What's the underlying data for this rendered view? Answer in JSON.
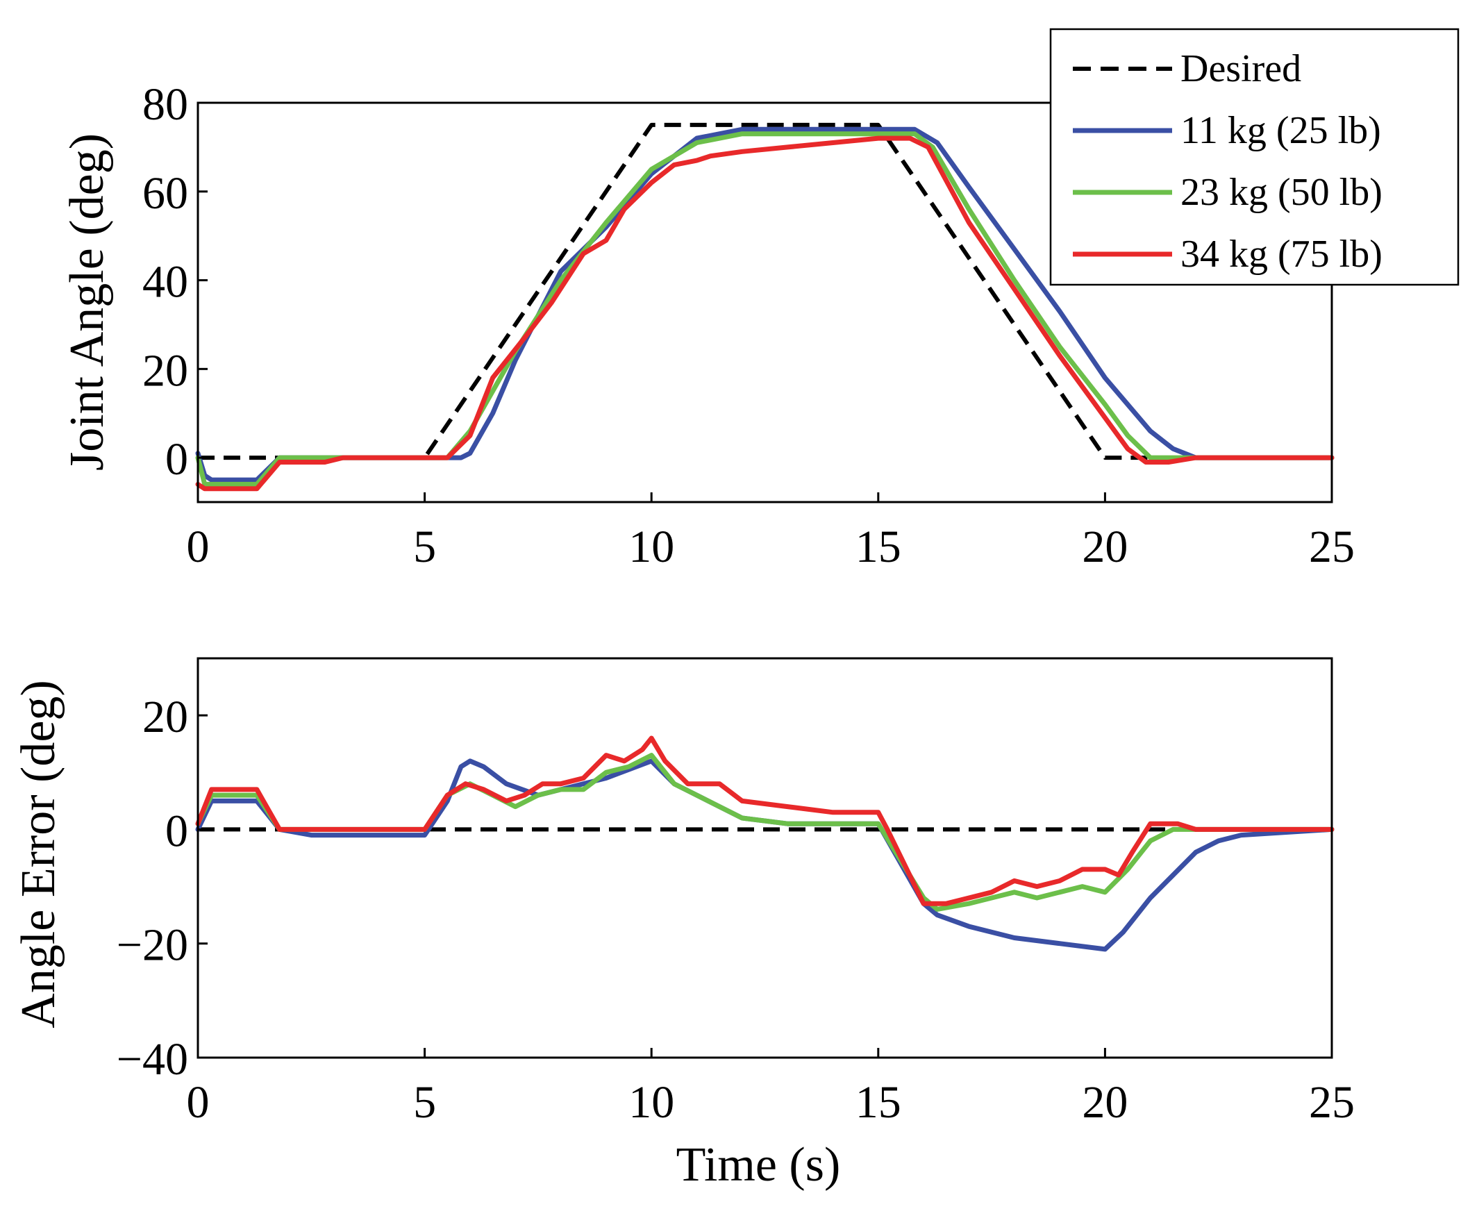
{
  "figure": {
    "xlabel": "Time (s)"
  },
  "colors": {
    "desired": "#000000",
    "s11": "#3a4fa4",
    "s23": "#6cbf4a",
    "s34": "#e8292a"
  },
  "chart_data": [
    {
      "type": "line",
      "name": "joint-angle",
      "xlabel": "",
      "ylabel": "Joint Angle (deg)",
      "xlim": [
        0,
        25
      ],
      "ylim": [
        -10,
        80
      ],
      "xticks": [
        "0",
        "5",
        "10",
        "15",
        "20",
        "25"
      ],
      "yticks": [
        "0",
        "20",
        "40",
        "60",
        "80"
      ],
      "ytick_values": [
        0,
        20,
        40,
        60,
        80
      ],
      "legend": {
        "position": "top-right",
        "entries": [
          "Desired",
          "11 kg (25 lb)",
          "23 kg (50 lb)",
          "34 kg (75 lb)"
        ]
      },
      "series": [
        {
          "name": "Desired",
          "key": "desired",
          "style": "dashed",
          "x": [
            0,
            5,
            10,
            15,
            20,
            25
          ],
          "y": [
            0,
            0,
            75,
            75,
            0,
            0
          ]
        },
        {
          "name": "11 kg (25 lb)",
          "key": "s11",
          "style": "solid",
          "x": [
            0,
            0.15,
            0.3,
            1,
            1.3,
            1.8,
            2.8,
            3.2,
            4,
            5,
            5.8,
            6,
            6.5,
            7,
            8,
            9,
            10,
            11,
            12,
            15.8,
            16.3,
            17,
            18,
            19,
            20,
            21,
            21.5,
            22,
            23,
            25
          ],
          "y": [
            1,
            -4,
            -5,
            -5,
            -5,
            0,
            0,
            0,
            0,
            0,
            0,
            1,
            10,
            22,
            42,
            52,
            64,
            72,
            74,
            74,
            71,
            61,
            47,
            33,
            18,
            6,
            2,
            0,
            0,
            0
          ]
        },
        {
          "name": "23 kg (50 lb)",
          "key": "s23",
          "style": "solid",
          "x": [
            0,
            0.15,
            0.3,
            1,
            1.3,
            1.8,
            2.8,
            3.2,
            4,
            5,
            5.5,
            6,
            7,
            8,
            9,
            10,
            11,
            12,
            15.8,
            16.2,
            17,
            18,
            19,
            20,
            20.5,
            21,
            22,
            25
          ],
          "y": [
            0,
            -6,
            -6,
            -6,
            -6,
            0,
            0,
            0,
            0,
            0,
            0,
            6,
            24,
            40,
            53,
            65,
            71,
            73,
            73,
            70,
            56,
            40,
            25,
            12,
            5,
            0,
            0,
            0
          ]
        },
        {
          "name": "34 kg (75 lb)",
          "key": "s34",
          "style": "solid",
          "x": [
            0,
            0.15,
            0.3,
            1,
            1.3,
            1.8,
            2.8,
            3.2,
            4,
            5,
            5.5,
            6,
            6.5,
            7.2,
            7.8,
            8.5,
            9,
            9.4,
            10,
            10.5,
            11,
            11.3,
            12,
            13,
            14,
            15,
            15.7,
            16.1,
            17,
            18,
            19,
            20,
            20.5,
            20.9,
            21.4,
            22,
            25
          ],
          "y": [
            -6,
            -7,
            -7,
            -7,
            -7,
            -1,
            -1,
            0,
            0,
            0,
            0,
            5,
            18,
            27,
            35,
            46,
            49,
            56,
            62,
            66,
            67,
            68,
            69,
            70,
            71,
            72,
            72,
            70,
            53,
            38,
            23,
            9,
            2,
            -1,
            -1,
            0,
            0
          ]
        }
      ]
    },
    {
      "type": "line",
      "name": "angle-error",
      "xlabel": "Time (s)",
      "ylabel": "Angle Error (deg)",
      "xlim": [
        0,
        25
      ],
      "ylim": [
        -40,
        30
      ],
      "xticks": [
        "0",
        "5",
        "10",
        "15",
        "20",
        "25"
      ],
      "yticks": [
        "20",
        "0",
        "−20",
        "−40"
      ],
      "ytick_values": [
        20,
        0,
        -20,
        -40
      ],
      "series": [
        {
          "name": "Desired",
          "key": "desired",
          "style": "dashed",
          "x": [
            0,
            25
          ],
          "y": [
            0,
            0
          ]
        },
        {
          "name": "11 kg (25 lb)",
          "key": "s11",
          "style": "solid",
          "x": [
            0,
            0.3,
            1,
            1.3,
            1.8,
            2.5,
            3,
            4,
            5,
            5.5,
            5.8,
            6,
            6.3,
            6.8,
            7.5,
            8,
            9,
            10,
            10.5,
            11,
            11.5,
            12,
            13,
            14,
            15,
            16,
            16.3,
            17,
            18,
            19,
            20,
            20.4,
            21,
            21.5,
            22,
            22.5,
            23,
            25
          ],
          "y": [
            0,
            5,
            5,
            5,
            0,
            -1,
            -1,
            -1,
            -1,
            5,
            11,
            12,
            11,
            8,
            6,
            7,
            9,
            12,
            8,
            6,
            4,
            2,
            1,
            1,
            1,
            -13,
            -15,
            -17,
            -19,
            -20,
            -21,
            -18,
            -12,
            -8,
            -4,
            -2,
            -1,
            0
          ]
        },
        {
          "name": "23 kg (50 lb)",
          "key": "s23",
          "style": "solid",
          "x": [
            0,
            0.3,
            1,
            1.3,
            1.8,
            2.5,
            3,
            4,
            5,
            5.5,
            6,
            6.5,
            7,
            7.5,
            8,
            8.5,
            9,
            9.5,
            10,
            10.5,
            11,
            12,
            13,
            14,
            15,
            16,
            16.3,
            17,
            17.5,
            18,
            18.5,
            19,
            19.5,
            20,
            20.5,
            21,
            21.5,
            22,
            25
          ],
          "y": [
            1,
            6,
            6,
            6,
            0,
            0,
            0,
            0,
            0,
            6,
            8,
            6,
            4,
            6,
            7,
            7,
            10,
            11,
            13,
            8,
            6,
            2,
            1,
            1,
            1,
            -12,
            -14,
            -13,
            -12,
            -11,
            -12,
            -11,
            -10,
            -11,
            -7,
            -2,
            0,
            0,
            0
          ]
        },
        {
          "name": "34 kg (75 lb)",
          "key": "s34",
          "style": "solid",
          "x": [
            0,
            0.3,
            1,
            1.3,
            1.8,
            2.5,
            3,
            4,
            5,
            5.5,
            5.9,
            6.3,
            6.8,
            7.2,
            7.6,
            8,
            8.5,
            9,
            9.4,
            9.8,
            10,
            10.3,
            10.8,
            11.5,
            12,
            13,
            14,
            15,
            15.2,
            16,
            16.5,
            17,
            17.5,
            18,
            18.5,
            19,
            19.5,
            20,
            20.3,
            20.6,
            21,
            21.6,
            22,
            25
          ],
          "y": [
            1,
            7,
            7,
            7,
            0,
            0,
            0,
            0,
            0,
            6,
            8,
            7,
            5,
            6,
            8,
            8,
            9,
            13,
            12,
            14,
            16,
            12,
            8,
            8,
            5,
            4,
            3,
            3,
            0,
            -13,
            -13,
            -12,
            -11,
            -9,
            -10,
            -9,
            -7,
            -7,
            -8,
            -4,
            1,
            1,
            0,
            0
          ]
        }
      ]
    }
  ]
}
